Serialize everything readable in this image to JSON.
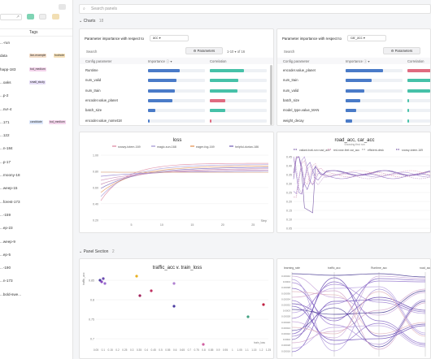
{
  "sidebar": {
    "tags_header": "Tags",
    "runs": [
      {
        "name": "...-run",
        "tags": []
      },
      {
        "name": "data",
        "tags": [
          {
            "label": "lion-example",
            "color": "#f3dcc6"
          },
          {
            "label": "footnote",
            "color": "#f6e0b8"
          }
        ]
      },
      {
        "name": "happ-183",
        "tags": [
          {
            "label": "tod_medium",
            "color": "#f4d4ec"
          }
        ]
      },
      {
        "name": "...oaks",
        "tags": [
          {
            "label": "small_study",
            "color": "#e5dcf6"
          }
        ]
      },
      {
        "name": "...p-2",
        "tags": []
      },
      {
        "name": "...nvr-4",
        "tags": []
      },
      {
        "name": "...171",
        "tags": [
          {
            "label": "candidate",
            "color": "#dbe6fa"
          },
          {
            "label": "tod_medium",
            "color": "#f4d4ec"
          }
        ]
      },
      {
        "name": "...122",
        "tags": []
      },
      {
        "name": "...n-184",
        "tags": []
      },
      {
        "name": "...p-17",
        "tags": []
      },
      {
        "name": "...rnoony-18",
        "tags": []
      },
      {
        "name": "...weep-15",
        "tags": []
      },
      {
        "name": "...forest-173",
        "tags": []
      },
      {
        "name": "...-159",
        "tags": []
      },
      {
        "name": "...ep-23",
        "tags": []
      },
      {
        "name": "...weep-9",
        "tags": []
      },
      {
        "name": "...ep-5",
        "tags": []
      },
      {
        "name": "...-190",
        "tags": []
      },
      {
        "name": "...n-173",
        "tags": []
      },
      {
        "name": "...bold-swe...",
        "tags": []
      }
    ]
  },
  "search": {
    "placeholder": "Search panels"
  },
  "sections": {
    "charts": {
      "title": "Charts",
      "count": "18"
    },
    "panel": {
      "title": "Panel Section",
      "count": "2"
    }
  },
  "importance_panels": [
    {
      "label": "Parameter importance with respect to",
      "metric": "acc",
      "search_placeholder": "Search",
      "parameters_btn": "Parameters",
      "pager": "1-10 ▾  of 16",
      "col_config": "Config parameter",
      "col_importance": "Importance ⓘ ▾",
      "col_correlation": "Correlation",
      "rows": [
        {
          "name": "Runtime",
          "importance": 0.55,
          "corr": 0.6,
          "corr_color": "#46c1a8"
        },
        {
          "name": "num_valid",
          "importance": 0.5,
          "corr": 0.5,
          "corr_color": "#46c1a8"
        },
        {
          "name": "num_train",
          "importance": 0.47,
          "corr": 0.48,
          "corr_color": "#46c1a8"
        },
        {
          "name": "encoder.value_planet",
          "importance": 0.43,
          "corr": 0.27,
          "corr_color": "#e06b80"
        },
        {
          "name": "batch_size",
          "importance": 0.13,
          "corr": 0.27,
          "corr_color": "#46c1a8"
        },
        {
          "name": "encoder.value_nomet18",
          "importance": 0.03,
          "corr": 0.03,
          "corr_color": "#e06b80"
        }
      ]
    },
    {
      "label": "Parameter importance with respect to",
      "metric": "car_acc",
      "search_placeholder": "Search",
      "parameters_btn": "Parameters",
      "pager": "",
      "col_config": "Config parameter",
      "col_importance": "Importance ⓘ ▾",
      "col_correlation": "Correlation",
      "rows": [
        {
          "name": "encoder.value_planet",
          "importance": 0.65,
          "corr": 0.5,
          "corr_color": "#e06b80"
        },
        {
          "name": "num_train",
          "importance": 0.46,
          "corr": 0.5,
          "corr_color": "#46c1a8"
        },
        {
          "name": "num_valid",
          "importance": 0.33,
          "corr": 0.4,
          "corr_color": "#46c1a8"
        },
        {
          "name": "batch_size",
          "importance": 0.26,
          "corr": 0.0,
          "corr_color": "#46c1a8"
        },
        {
          "name": "model_type.value_MAN",
          "importance": 0.18,
          "corr": 0.0,
          "corr_color": "#46c1a8"
        },
        {
          "name": "weight_decay",
          "importance": 0.11,
          "corr": 0.0,
          "corr_color": "#46c1a8"
        }
      ]
    }
  ],
  "loss_chart": {
    "title": "loss",
    "legend": [
      "snowy-totem-169",
      "magic-sun-168",
      "eager-fog-169",
      "helpful-durian-186"
    ],
    "legend_colors": [
      "#e39bb2",
      "#b2a6dc",
      "#e8a46e",
      "#8a7ac2"
    ],
    "xlabel": "Step",
    "yticks": [
      "1.00",
      "0.80",
      "0.60",
      "0.40",
      "0.20"
    ],
    "xticks": [
      "5",
      "10",
      "15",
      "20",
      "25"
    ]
  },
  "road_chart": {
    "title": "road_acc, car_acc",
    "subtitle": "Showing first run",
    "legend": [
      "valiant-butt-run road_acc",
      "red-rose-feel car_acc",
      "efficient-desk",
      "snowy-totem-169"
    ],
    "yticks": [
      "0.45",
      "0.40",
      "0.35",
      "0.30",
      "0.25",
      "0.20",
      "0.15",
      "0.10",
      "0.05"
    ]
  },
  "scatter_chart": {
    "title": "traffic_acc v. train_loss",
    "ylabel": "traffic_acc",
    "xlabel": "train_loss",
    "yticks": [
      "0.85",
      "0.8",
      "0.75",
      "0.7"
    ],
    "xticks": [
      "0.05",
      "0.1",
      "0.15",
      "0.2",
      "0.25",
      "0.3",
      "0.35",
      "0.4",
      "0.45",
      "0.5",
      "0.55",
      "0.6",
      "0.65",
      "0.7",
      "0.75",
      "0.8",
      "0.85",
      "0.9",
      "0.95",
      "1",
      "1.05",
      "1.1",
      "1.15",
      "1.2",
      "1.25"
    ]
  },
  "parallel_chart": {
    "axes": [
      "learning_rate",
      "traffic_acc",
      "Runtime_acc",
      "road_acc"
    ],
    "yticks": [
      "0.00042",
      "0.0004",
      "0.00038",
      "0.00036",
      "0.00034",
      "0.00032",
      "0.0003",
      "0.00028",
      "0.00026",
      "0.00024",
      "0.00022",
      "0.0002",
      "0.00018",
      "0.00016"
    ]
  }
}
